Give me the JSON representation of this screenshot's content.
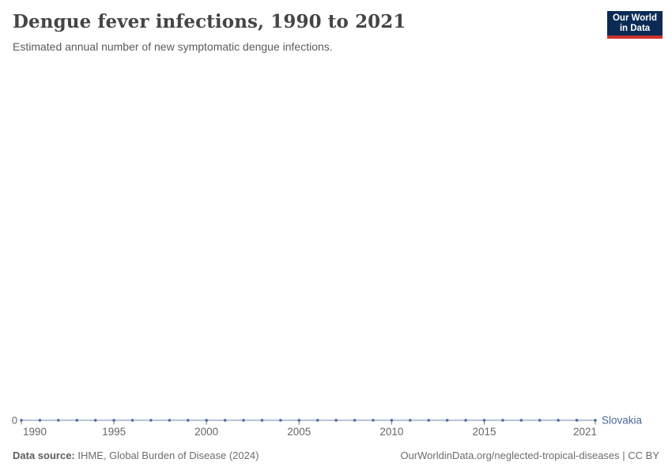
{
  "header": {
    "title": "Dengue fever infections, 1990 to 2021",
    "subtitle": "Estimated annual number of new symptomatic dengue infections."
  },
  "logo": {
    "line1": "Our World",
    "line2": "in Data",
    "bg_color": "#0b2b55",
    "accent_color": "#cf342c"
  },
  "footer": {
    "source_label": "Data source:",
    "source_text": " IHME, Global Burden of Disease (2024)",
    "right_text": "OurWorldinData.org/neglected-tropical-diseases | CC BY"
  },
  "chart_data": {
    "type": "line",
    "title": "Dengue fever infections, 1990 to 2021",
    "subtitle": "Estimated annual number of new symptomatic dengue infections.",
    "xlabel": "",
    "ylabel": "",
    "grid": false,
    "legend_position": "end-of-line-label",
    "x": [
      1990,
      1991,
      1992,
      1993,
      1994,
      1995,
      1996,
      1997,
      1998,
      1999,
      2000,
      2001,
      2002,
      2003,
      2004,
      2005,
      2006,
      2007,
      2008,
      2009,
      2010,
      2011,
      2012,
      2013,
      2014,
      2015,
      2016,
      2017,
      2018,
      2019,
      2020,
      2021
    ],
    "series": [
      {
        "name": "Slovakia",
        "color": "#4C6A9C",
        "values": [
          0,
          0,
          0,
          0,
          0,
          0,
          0,
          0,
          0,
          0,
          0,
          0,
          0,
          0,
          0,
          0,
          0,
          0,
          0,
          0,
          0,
          0,
          0,
          0,
          0,
          0,
          0,
          0,
          0,
          0,
          0,
          0
        ]
      }
    ],
    "x_ticks": [
      1990,
      1995,
      2000,
      2005,
      2010,
      2015,
      2021
    ],
    "x_tick_labels": [
      "1990",
      "1995",
      "2000",
      "2005",
      "2010",
      "2015",
      "2021"
    ],
    "y_ticks": [
      0
    ],
    "y_tick_labels": [
      "0"
    ],
    "axis_tick_color": "#787878",
    "axis_label_color": "#666666"
  }
}
